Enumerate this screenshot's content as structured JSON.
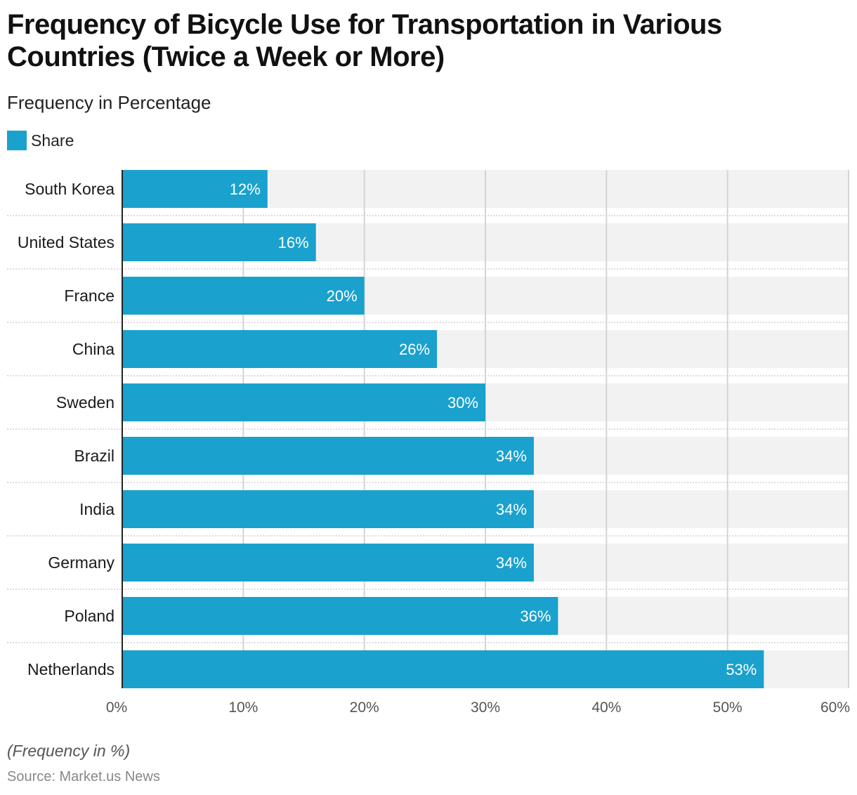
{
  "title": "Frequency of Bicycle Use for Transportation in Various Countries (Twice a Week or More)",
  "subtitle": "Frequency in Percentage",
  "legend": {
    "label": "Share",
    "color": "#1aa1cd"
  },
  "footer": {
    "note": "(Frequency in %)",
    "source": "Source: Market.us News"
  },
  "chart_data": {
    "type": "bar",
    "orientation": "horizontal",
    "title": "Frequency of Bicycle Use for Transportation in Various Countries (Twice a Week or More)",
    "subtitle": "Frequency in Percentage",
    "xlabel": "",
    "ylabel": "",
    "xlim": [
      0,
      60
    ],
    "x_ticks": [
      0,
      10,
      20,
      30,
      40,
      50,
      60
    ],
    "x_tick_labels": [
      "0%",
      "10%",
      "20%",
      "30%",
      "40%",
      "50%",
      "60%"
    ],
    "grid": true,
    "legend_position": "top-left",
    "categories": [
      "South Korea",
      "United States",
      "France",
      "China",
      "Sweden",
      "Brazil",
      "India",
      "Germany",
      "Poland",
      "Netherlands"
    ],
    "series": [
      {
        "name": "Share",
        "color": "#1aa1cd",
        "values": [
          12,
          16,
          20,
          26,
          30,
          34,
          34,
          34,
          36,
          53
        ]
      }
    ],
    "data_labels": [
      "12%",
      "16%",
      "20%",
      "26%",
      "30%",
      "34%",
      "34%",
      "34%",
      "36%",
      "53%"
    ]
  }
}
